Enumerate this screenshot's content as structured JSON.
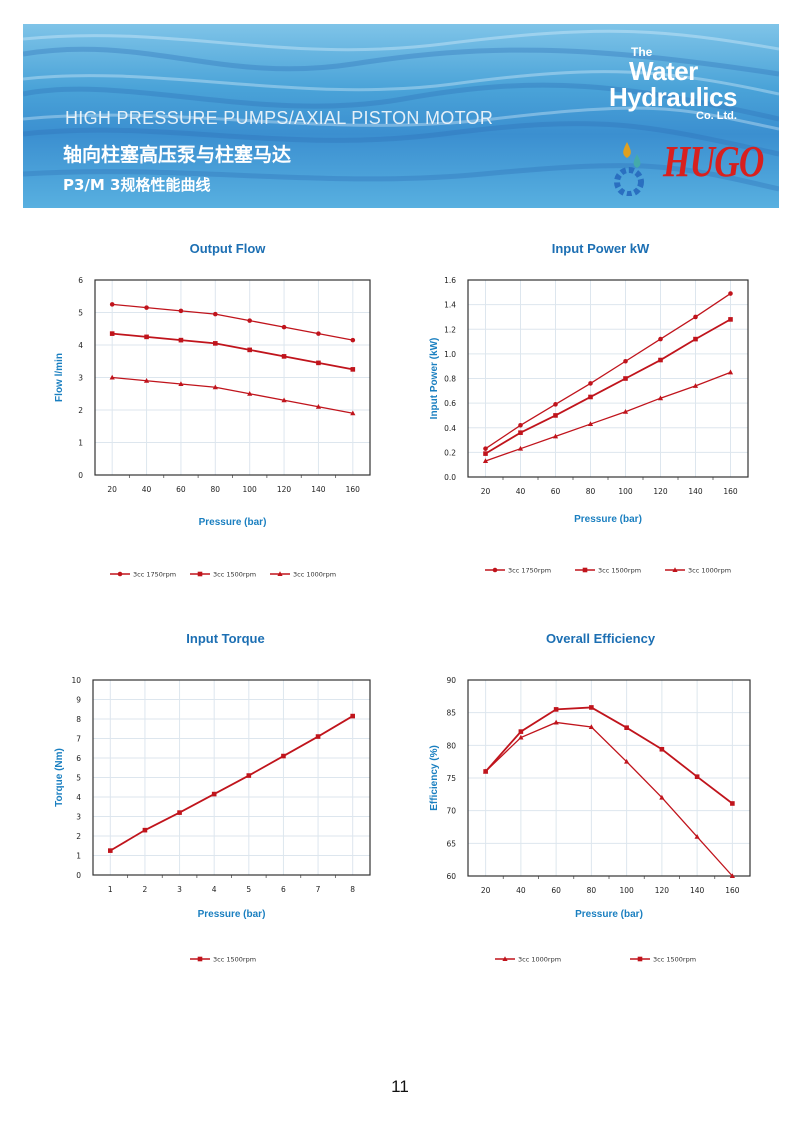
{
  "header": {
    "title_en": "HIGH  PRESSURE  PUMPS/AXIAL PISTON MOTOR",
    "title_cn": "轴向柱塞高压泵与柱塞马达",
    "subtitle": "P3/M 3规格性能曲线",
    "logo_water": {
      "the": "The",
      "water": "Water",
      "hydraulics": "Hydraulics",
      "co": "Co. Ltd."
    },
    "logo_hugo": "HUGO"
  },
  "colors": {
    "series": "#c0141c",
    "title": "#1c6fb3",
    "axis_label": "#1a7fc0",
    "grid": "#dde6ee"
  },
  "page_number": "11",
  "chart_data": [
    {
      "type": "line",
      "title": "Output Flow",
      "xlabel": "Pressure (bar)",
      "ylabel": "Flow l/min",
      "x": [
        20,
        40,
        60,
        80,
        100,
        120,
        140,
        160
      ],
      "ylim": [
        0,
        6
      ],
      "yticks": [
        "0",
        "1",
        "2",
        "3",
        "4",
        "5",
        "6"
      ],
      "grid": true,
      "legend": "bottom",
      "series": [
        {
          "name": "3cc 1750rpm",
          "marker": "circle",
          "values": [
            5.25,
            5.15,
            5.05,
            4.95,
            4.75,
            4.55,
            4.35,
            4.15
          ]
        },
        {
          "name": "3cc 1500rpm",
          "marker": "square",
          "values": [
            4.35,
            4.25,
            4.15,
            4.05,
            3.85,
            3.65,
            3.45,
            3.25
          ]
        },
        {
          "name": "3cc 1000rpm",
          "marker": "triangle",
          "values": [
            3.0,
            2.9,
            2.8,
            2.7,
            2.5,
            2.3,
            2.1,
            1.9
          ]
        }
      ]
    },
    {
      "type": "line",
      "title": "Input Power kW",
      "xlabel": "Pressure (bar)",
      "ylabel": "Input Power (kW)",
      "x": [
        20,
        40,
        60,
        80,
        100,
        120,
        140,
        160
      ],
      "ylim": [
        0,
        1.6
      ],
      "yticks": [
        "0.0",
        "0.2",
        "0.4",
        "0.6",
        "0.8",
        "1.0",
        "1.2",
        "1.4",
        "1.6"
      ],
      "grid": true,
      "legend": "bottom",
      "series": [
        {
          "name": "3cc 1750rpm",
          "marker": "circle",
          "values": [
            0.23,
            0.42,
            0.59,
            0.76,
            0.94,
            1.12,
            1.3,
            1.49
          ]
        },
        {
          "name": "3cc 1500rpm",
          "marker": "square",
          "values": [
            0.19,
            0.36,
            0.5,
            0.65,
            0.8,
            0.95,
            1.12,
            1.28
          ]
        },
        {
          "name": "3cc 1000rpm",
          "marker": "triangle",
          "values": [
            0.13,
            0.23,
            0.33,
            0.43,
            0.53,
            0.64,
            0.74,
            0.85
          ]
        }
      ]
    },
    {
      "type": "line",
      "title": "Input Torque",
      "xlabel": "Pressure (bar)",
      "ylabel": "Torque (Nm)",
      "x": [
        1,
        2,
        3,
        4,
        5,
        6,
        7,
        8
      ],
      "ylim": [
        0,
        10
      ],
      "yticks": [
        "0",
        "1",
        "2",
        "3",
        "4",
        "5",
        "6",
        "7",
        "8",
        "9",
        "10"
      ],
      "grid": true,
      "legend": "bottom",
      "series": [
        {
          "name": "3cc 1500rpm",
          "marker": "square",
          "values": [
            1.25,
            2.3,
            3.2,
            4.15,
            5.1,
            6.1,
            7.1,
            8.15
          ]
        }
      ]
    },
    {
      "type": "line",
      "title": "Overall Efficiency",
      "xlabel": "Pressure (bar)",
      "ylabel": "Efficiency (%)",
      "x": [
        20,
        40,
        60,
        80,
        100,
        120,
        140,
        160
      ],
      "ylim": [
        60,
        90
      ],
      "yticks": [
        "60",
        "65",
        "70",
        "75",
        "80",
        "85",
        "90"
      ],
      "grid": true,
      "legend": "bottom",
      "series": [
        {
          "name": "3cc 1000rpm",
          "marker": "triangle",
          "values": [
            76,
            81.2,
            83.5,
            82.8,
            77.5,
            72,
            66,
            59.8
          ]
        },
        {
          "name": "3cc 1500rpm",
          "marker": "square",
          "values": [
            76,
            82.1,
            85.5,
            85.8,
            82.7,
            79.4,
            75.2,
            71.1
          ]
        }
      ]
    }
  ]
}
